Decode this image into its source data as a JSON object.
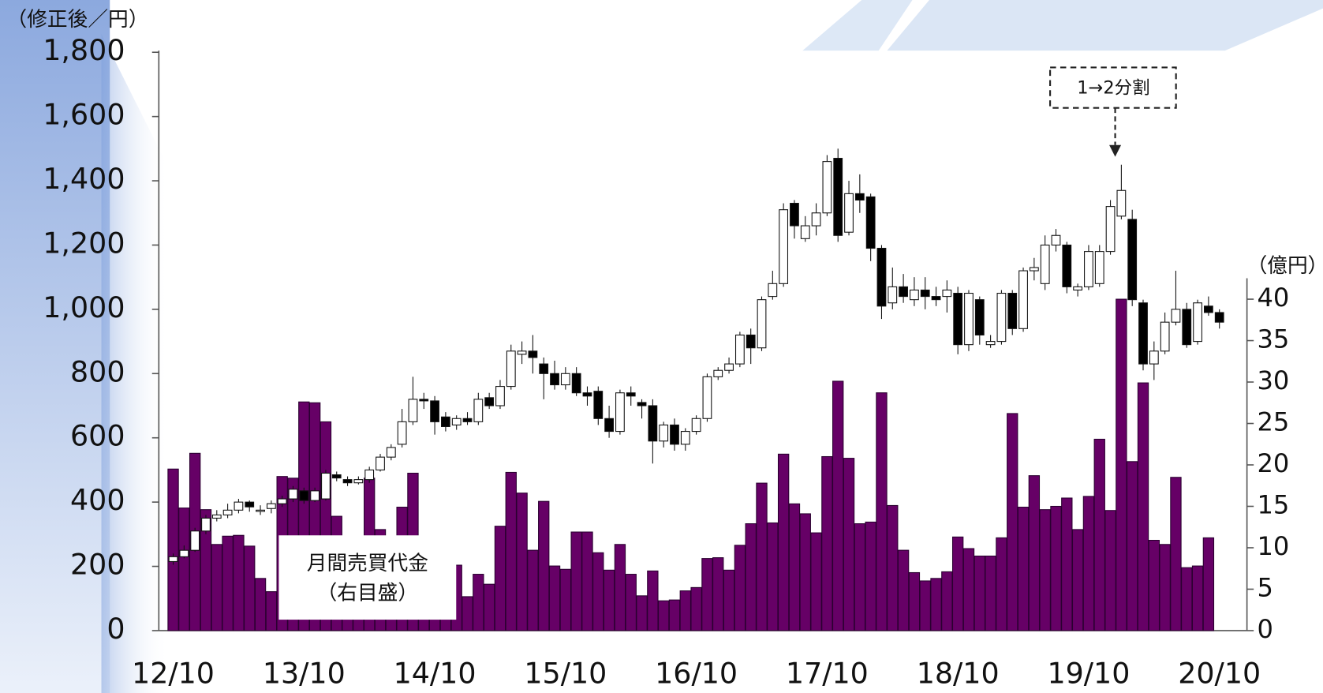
{
  "chart_data": {
    "type": "candlestick",
    "y_axis_label": "（修正後／円）",
    "y2_axis_label": "（億円）",
    "annotation": "1→2分割",
    "categories": [
      "12/10",
      null,
      null,
      null,
      null,
      null,
      null,
      null,
      null,
      null,
      null,
      null,
      "13/10",
      null,
      null,
      null,
      null,
      null,
      null,
      null,
      null,
      null,
      null,
      null,
      "14/10",
      null,
      null,
      null,
      null,
      null,
      null,
      null,
      null,
      null,
      null,
      null,
      "15/10",
      null,
      null,
      null,
      null,
      null,
      null,
      null,
      null,
      null,
      null,
      null,
      "16/10",
      null,
      null,
      null,
      null,
      null,
      null,
      null,
      null,
      null,
      null,
      null,
      "17/10",
      null,
      null,
      null,
      null,
      null,
      null,
      null,
      null,
      null,
      null,
      null,
      "18/10",
      null,
      null,
      null,
      null,
      null,
      null,
      null,
      null,
      null,
      null,
      null,
      "19/10",
      null,
      null,
      null,
      null,
      null,
      null,
      null,
      null,
      null,
      null,
      null,
      "20/10"
    ],
    "open": [
      215,
      230,
      250,
      310,
      350,
      360,
      375,
      400,
      375,
      380,
      395,
      410,
      435,
      405,
      410,
      485,
      470,
      460,
      470,
      500,
      540,
      580,
      650,
      720,
      715,
      665,
      640,
      660,
      650,
      725,
      700,
      760,
      860,
      870,
      830,
      800,
      765,
      800,
      740,
      745,
      660,
      620,
      740,
      710,
      700,
      590,
      640,
      580,
      620,
      660,
      790,
      810,
      830,
      920,
      880,
      1040,
      1080,
      1330,
      1220,
      1260,
      1300,
      1470,
      1240,
      1360,
      1350,
      1190,
      1020,
      1070,
      1030,
      1060,
      1040,
      1040,
      1050,
      890,
      1030,
      890,
      900,
      1050,
      940,
      1120,
      1080,
      1200,
      1200,
      1060,
      1070,
      1080,
      1180,
      1290,
      1280,
      1020,
      830,
      870,
      960,
      1000,
      900,
      1010,
      990
    ],
    "high": [
      240,
      265,
      320,
      360,
      375,
      395,
      410,
      405,
      390,
      405,
      420,
      450,
      445,
      445,
      500,
      495,
      480,
      480,
      510,
      550,
      580,
      690,
      790,
      740,
      730,
      680,
      670,
      680,
      740,
      740,
      780,
      890,
      900,
      920,
      850,
      840,
      820,
      820,
      760,
      760,
      700,
      750,
      760,
      720,
      720,
      650,
      660,
      630,
      670,
      800,
      820,
      850,
      930,
      940,
      1040,
      1120,
      1330,
      1340,
      1290,
      1330,
      1480,
      1500,
      1400,
      1420,
      1360,
      1200,
      1130,
      1110,
      1100,
      1100,
      1070,
      1090,
      1070,
      1060,
      1040,
      920,
      1060,
      1060,
      1130,
      1160,
      1230,
      1250,
      1210,
      1080,
      1200,
      1200,
      1340,
      1450,
      1310,
      1030,
      900,
      990,
      1120,
      1020,
      1030,
      1040,
      1000
    ],
    "low": [
      205,
      225,
      245,
      300,
      340,
      350,
      365,
      370,
      360,
      365,
      385,
      400,
      395,
      400,
      405,
      465,
      450,
      455,
      460,
      495,
      530,
      570,
      640,
      690,
      610,
      620,
      625,
      640,
      640,
      690,
      690,
      750,
      830,
      800,
      720,
      750,
      750,
      730,
      700,
      640,
      600,
      610,
      700,
      660,
      520,
      570,
      560,
      560,
      610,
      650,
      780,
      800,
      820,
      830,
      870,
      1030,
      1070,
      1220,
      1210,
      1230,
      1290,
      1210,
      1230,
      1300,
      1150,
      970,
      1000,
      1020,
      1010,
      1000,
      1010,
      990,
      860,
      870,
      890,
      880,
      890,
      920,
      930,
      1090,
      1060,
      1180,
      1050,
      1040,
      1060,
      1070,
      1170,
      1280,
      1010,
      810,
      780,
      860,
      950,
      880,
      890,
      980,
      940
    ],
    "close": [
      230,
      250,
      310,
      350,
      360,
      375,
      400,
      385,
      375,
      395,
      410,
      440,
      405,
      435,
      490,
      475,
      460,
      470,
      500,
      540,
      570,
      650,
      720,
      715,
      650,
      635,
      660,
      650,
      720,
      700,
      760,
      870,
      870,
      850,
      800,
      765,
      800,
      740,
      730,
      660,
      620,
      740,
      730,
      700,
      590,
      640,
      580,
      620,
      660,
      790,
      810,
      830,
      920,
      880,
      1030,
      1080,
      1310,
      1260,
      1260,
      1300,
      1460,
      1230,
      1360,
      1340,
      1190,
      1010,
      1070,
      1040,
      1060,
      1040,
      1030,
      1060,
      890,
      1050,
      920,
      900,
      1050,
      940,
      1120,
      1130,
      1200,
      1230,
      1070,
      1070,
      1180,
      1180,
      1320,
      1370,
      1030,
      830,
      870,
      960,
      1000,
      890,
      1020,
      990,
      960
    ],
    "up_color": "#ffffff",
    "down_color": "#000000",
    "volume": {
      "name": "月間売買代金",
      "note": "（右目盛）",
      "axis": "y2",
      "color": "#660066",
      "values": [
        19.5,
        14.8,
        21.4,
        14.6,
        10.4,
        11.4,
        11.5,
        10.2,
        6.3,
        4.7,
        18.6,
        18.4,
        27.6,
        27.5,
        25.2,
        13.8,
        10,
        9,
        18.4,
        12.2,
        9,
        14.9,
        19.0,
        7,
        6,
        7,
        7.9,
        4.1,
        6.8,
        5.6,
        12.6,
        19.1,
        16.6,
        9.7,
        15.6,
        7.8,
        7.4,
        11.9,
        11.9,
        9.4,
        7.3,
        10.4,
        6.8,
        4.2,
        7.2,
        3.6,
        3.7,
        4.8,
        5.2,
        8.7,
        8.8,
        7.3,
        10.3,
        12.9,
        17.8,
        13.0,
        21.3,
        15.3,
        14.1,
        11.8,
        21.0,
        30.1,
        20.8,
        12.9,
        13.1,
        28.7,
        15.1,
        9.7,
        7.0,
        6.0,
        6.3,
        7.1,
        11.3,
        9.9,
        9.0,
        9.0,
        11.2,
        26.2,
        14.9,
        18.7,
        14.6,
        15.0,
        16.0,
        12.2,
        16.2,
        23.1,
        14.5,
        40.0,
        20.4,
        29.9,
        10.9,
        10.4,
        18.5,
        7.6,
        7.8,
        11.2,
        null
      ]
    },
    "ylim": [
      0,
      1800
    ],
    "yticks": [
      0,
      200,
      400,
      600,
      800,
      {
        "value": 1000,
        "label": "1,000"
      },
      {
        "value": 1200,
        "label": "1,200"
      },
      {
        "value": 1400,
        "label": "1,400"
      },
      {
        "value": 1600,
        "label": "1,600"
      },
      {
        "value": 1800,
        "label": "1,800"
      }
    ],
    "y2lim": [
      0,
      69.8
    ],
    "y2ticks": [
      0,
      5,
      10,
      15,
      20,
      25,
      30,
      35,
      40
    ]
  }
}
